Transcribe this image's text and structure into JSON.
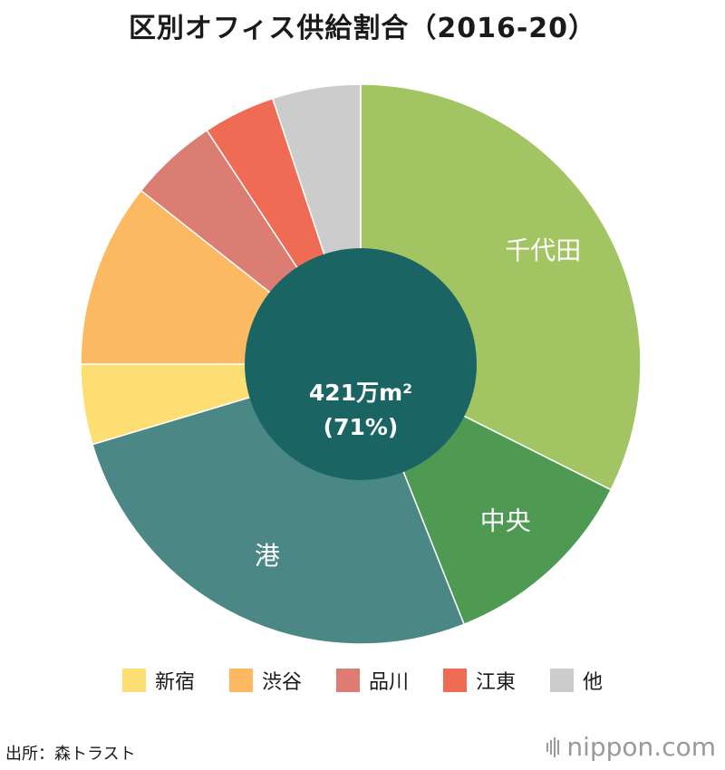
{
  "title": "区別オフィス供給割合（2016-20）",
  "chart_data": {
    "type": "pie",
    "slices": [
      {
        "label": "千代田",
        "value": 35.0,
        "color": "#a2c462",
        "show_label": true
      },
      {
        "label": "中央",
        "value": 12.5,
        "color": "#4e9a52",
        "show_label": true
      },
      {
        "label": "港",
        "value": 28.5,
        "color": "#4a8785",
        "show_label": true
      },
      {
        "label": "新宿",
        "value": 5.0,
        "color": "#fdde73",
        "show_label": false
      },
      {
        "label": "渋谷",
        "value": 11.5,
        "color": "#fdb961",
        "show_label": false
      },
      {
        "label": "品川",
        "value": 5.5,
        "color": "#db7d73",
        "show_label": false
      },
      {
        "label": "江東",
        "value": 4.5,
        "color": "#f06b54",
        "show_label": false
      },
      {
        "label": "他",
        "value": 5.5,
        "color": "#cccccc",
        "show_label": false
      }
    ],
    "inner_circle": {
      "color": "#1a6563",
      "line1": "421万m²",
      "line2": "(71%)"
    },
    "legend": [
      "新宿",
      "渋谷",
      "品川",
      "江東",
      "他"
    ]
  },
  "source": "出所：森トラスト",
  "brand": "nippon.com"
}
